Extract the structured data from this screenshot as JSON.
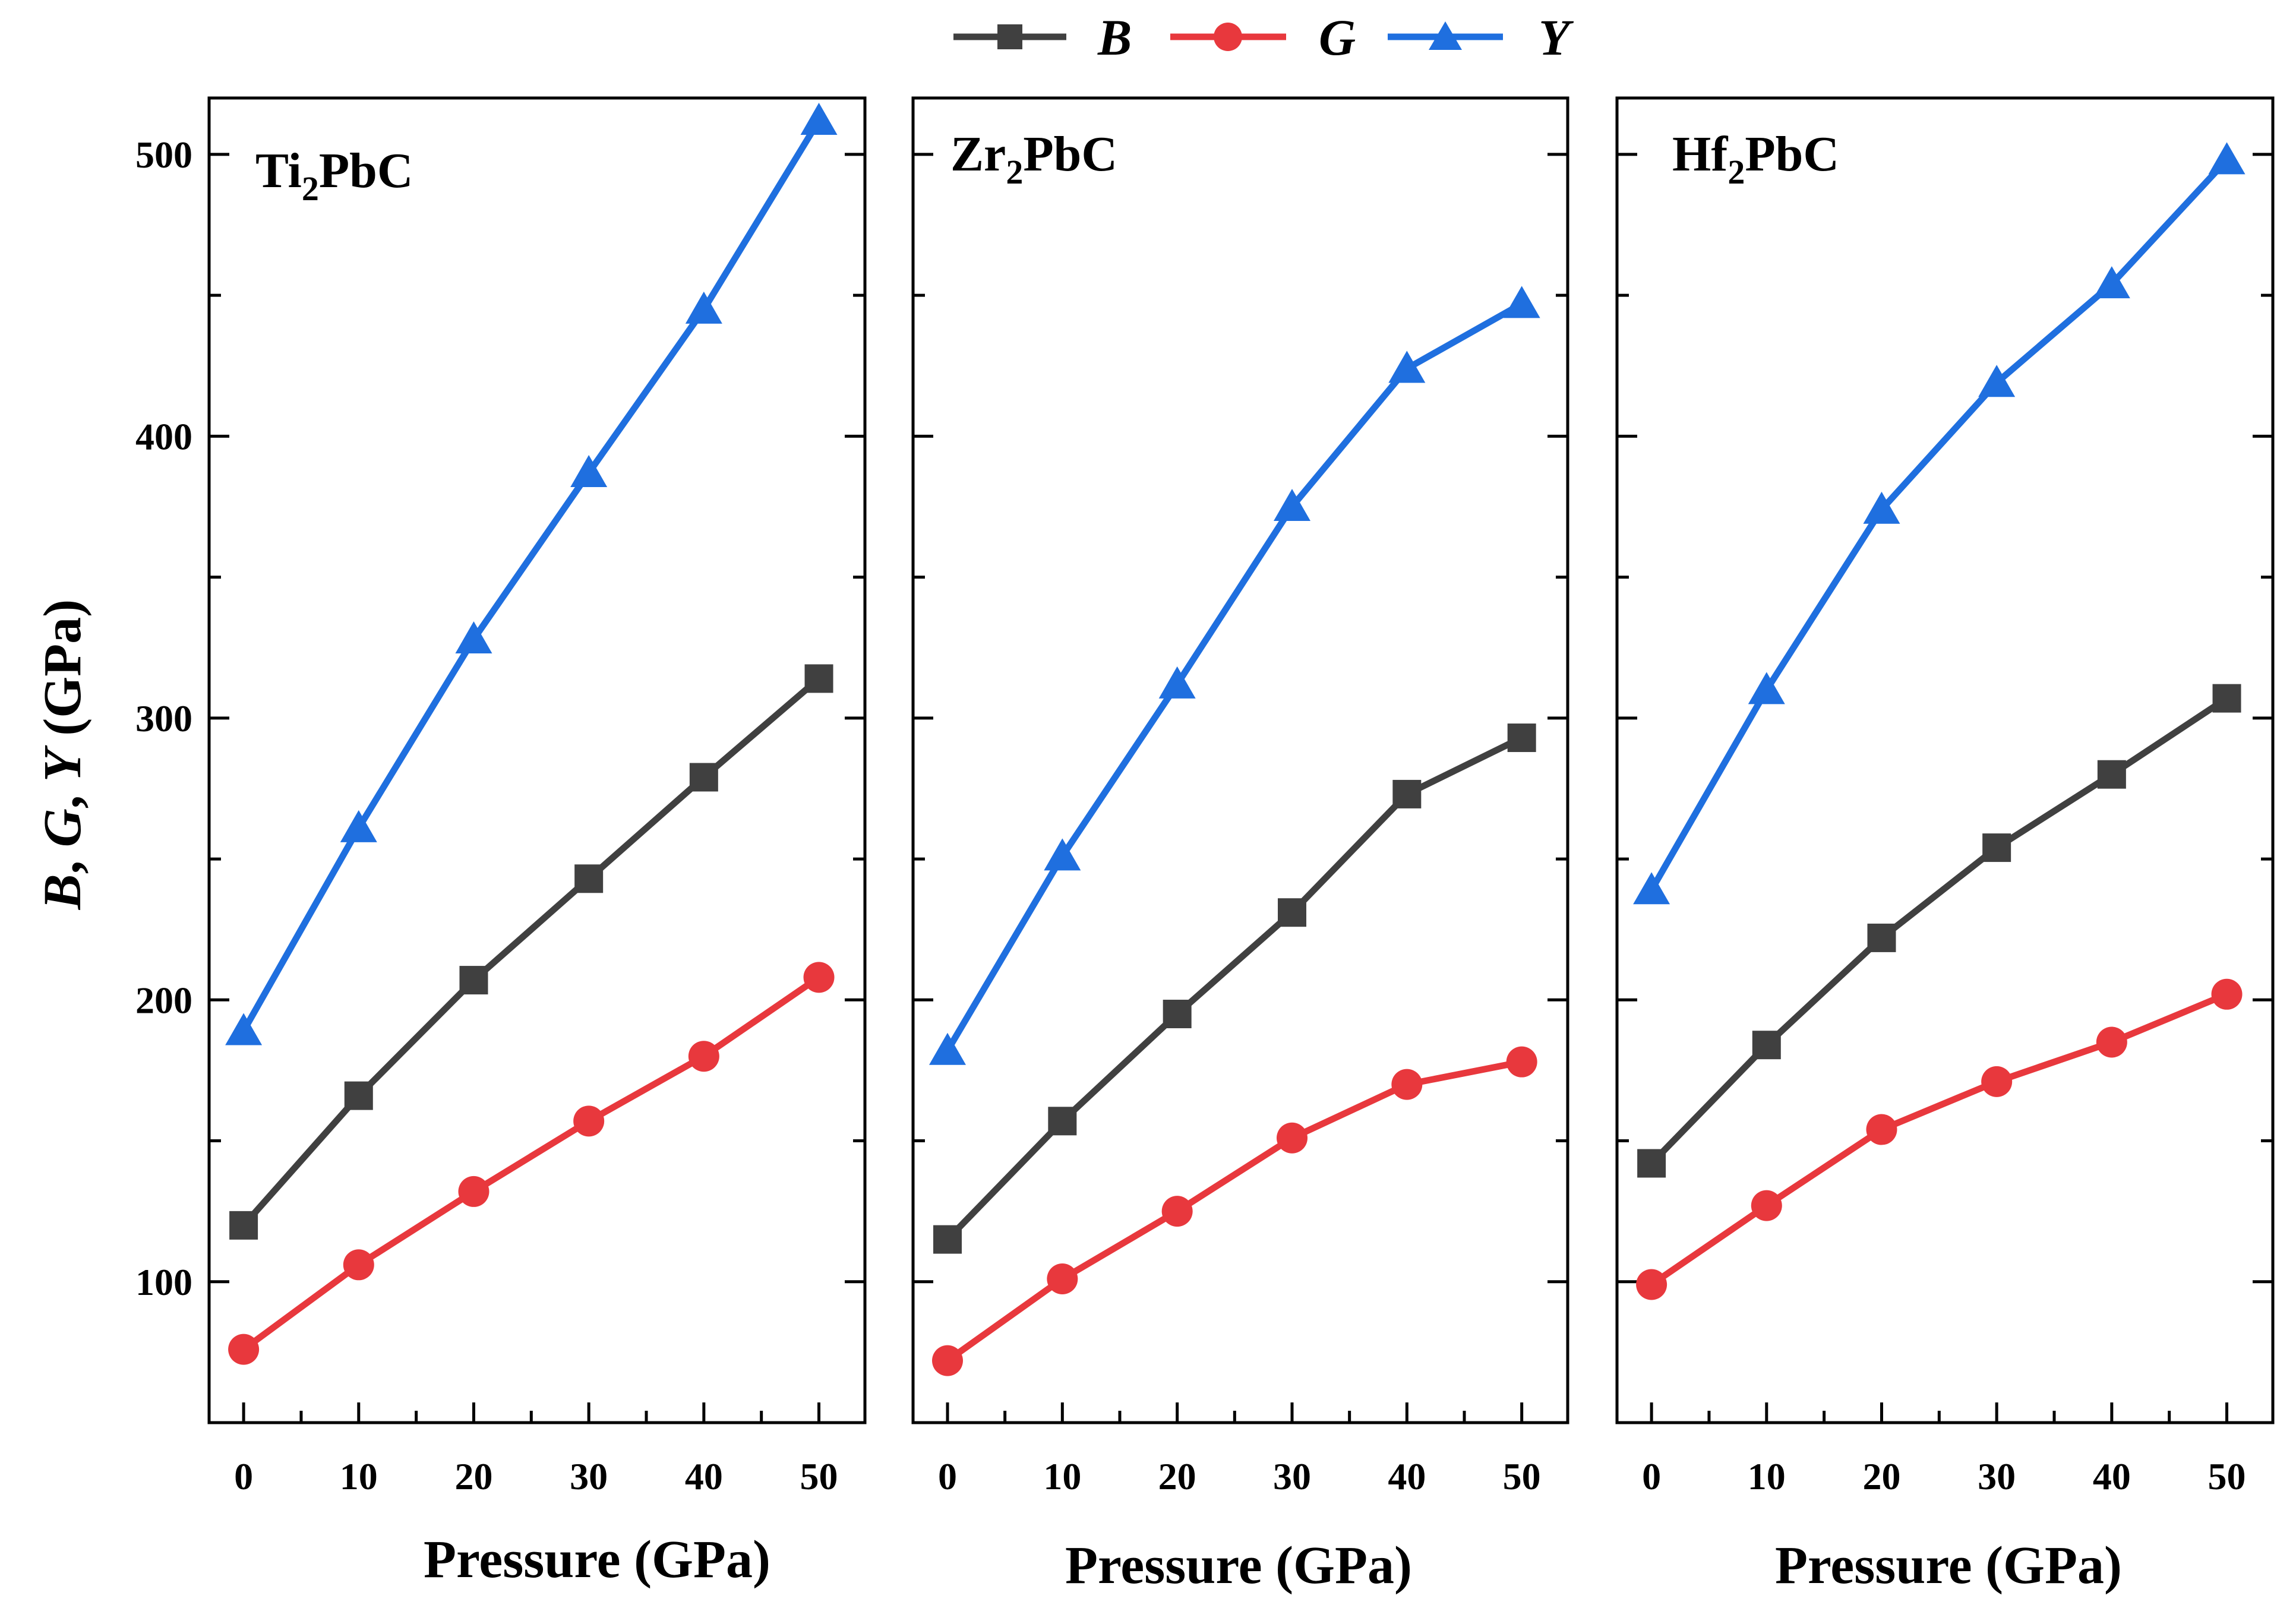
{
  "chart_data": {
    "type": "line",
    "ylabel_parts": [
      {
        "text": "B",
        "italic": true
      },
      {
        "text": ", ",
        "italic": false
      },
      {
        "text": "G",
        "italic": true
      },
      {
        "text": ", ",
        "italic": false
      },
      {
        "text": "Y",
        "italic": true
      },
      {
        "text": " (GPa)",
        "italic": false
      }
    ],
    "ylim": [
      50,
      520
    ],
    "yticks": [
      100,
      200,
      300,
      400,
      500
    ],
    "xlim": [
      -3,
      54
    ],
    "xticks": [
      0,
      10,
      20,
      30,
      40,
      50
    ],
    "legend": {
      "placement": "top-center",
      "entries": [
        {
          "name": "B",
          "color": "#404040",
          "marker": "square"
        },
        {
          "name": "G",
          "color": "#e8383d",
          "marker": "circle"
        },
        {
          "name": "Y",
          "color": "#1f6fdf",
          "marker": "triangle"
        }
      ]
    },
    "panels": [
      {
        "title_base": "Ti",
        "title_sub": "2",
        "title_rest": "PbC",
        "xlabel": "Pressure (GPa)",
        "x": [
          0,
          10,
          20,
          30,
          40,
          50
        ],
        "series": [
          {
            "name": "B",
            "values": [
              120,
              166,
              207,
              243,
              279,
              314
            ]
          },
          {
            "name": "G",
            "values": [
              76,
              106,
              132,
              157,
              180,
              208
            ]
          },
          {
            "name": "Y",
            "values": [
              189,
              261,
              328,
              387,
              445,
              512
            ]
          }
        ]
      },
      {
        "title_base": "Zr",
        "title_sub": "2",
        "title_rest": "PbC",
        "xlabel": "Pressure (GPa)",
        "x": [
          0,
          10,
          20,
          30,
          40,
          50
        ],
        "series": [
          {
            "name": "B",
            "values": [
              115,
              157,
              195,
              231,
              273,
              293
            ]
          },
          {
            "name": "G",
            "values": [
              72,
              101,
              125,
              151,
              170,
              178
            ]
          },
          {
            "name": "Y",
            "values": [
              182,
              251,
              312,
              375,
              424,
              447
            ]
          }
        ]
      },
      {
        "title_base": "Hf",
        "title_sub": "2",
        "title_rest": "PbC",
        "xlabel": "Pressure (GPa)",
        "x": [
          0,
          10,
          20,
          30,
          40,
          50
        ],
        "series": [
          {
            "name": "B",
            "values": [
              142,
              184,
              222,
              254,
              280,
              307
            ]
          },
          {
            "name": "G",
            "values": [
              99,
              127,
              154,
              171,
              185,
              202
            ]
          },
          {
            "name": "Y",
            "values": [
              239,
              310,
              374,
              419,
              454,
              498
            ]
          }
        ]
      }
    ]
  }
}
